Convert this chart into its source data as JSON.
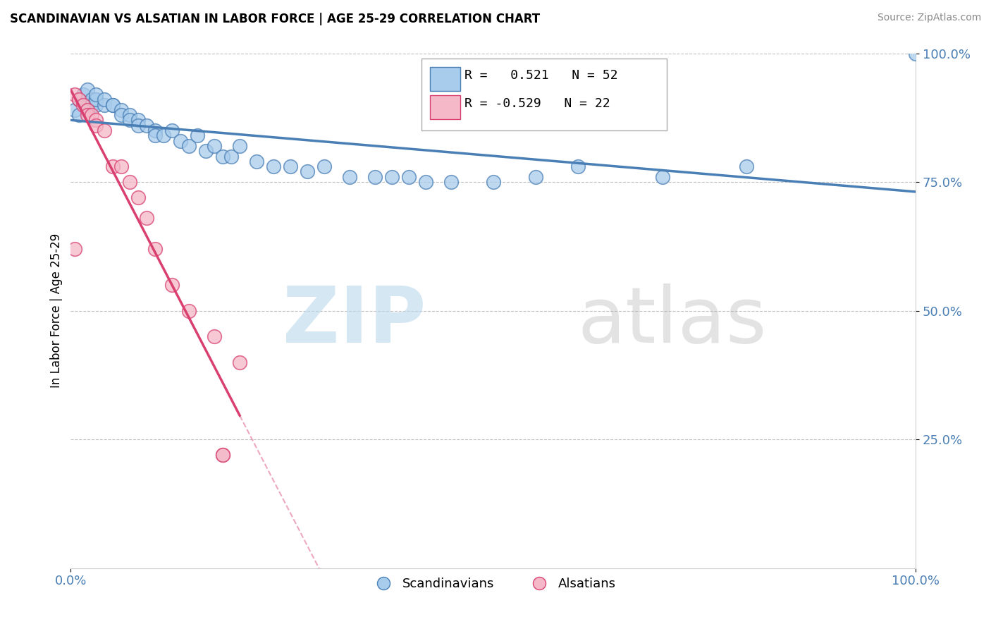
{
  "title": "SCANDINAVIAN VS ALSATIAN IN LABOR FORCE | AGE 25-29 CORRELATION CHART",
  "source_text": "Source: ZipAtlas.com",
  "ylabel": "In Labor Force | Age 25-29",
  "xlim": [
    0,
    1.0
  ],
  "ylim": [
    0,
    1.0
  ],
  "legend_r_blue": "R =   0.521",
  "legend_n_blue": "N = 52",
  "legend_r_pink": "R = -0.529",
  "legend_n_pink": "N = 22",
  "blue_color": "#a8ccec",
  "pink_color": "#f4b8c8",
  "blue_line_color": "#4a7fb5",
  "pink_line_color": "#d94070",
  "blue_scatter_x": [
    0.005,
    0.01,
    0.01,
    0.015,
    0.02,
    0.02,
    0.025,
    0.025,
    0.03,
    0.03,
    0.03,
    0.03,
    0.04,
    0.04,
    0.05,
    0.05,
    0.06,
    0.06,
    0.07,
    0.07,
    0.08,
    0.08,
    0.09,
    0.1,
    0.1,
    0.11,
    0.12,
    0.13,
    0.14,
    0.15,
    0.16,
    0.17,
    0.18,
    0.19,
    0.2,
    0.22,
    0.24,
    0.26,
    0.28,
    0.3,
    0.33,
    0.36,
    0.38,
    0.4,
    0.42,
    0.45,
    0.5,
    0.55,
    0.6,
    0.7,
    0.8,
    1.0
  ],
  "blue_scatter_y": [
    0.89,
    0.91,
    0.88,
    0.92,
    0.9,
    0.93,
    0.9,
    0.91,
    0.91,
    0.9,
    0.91,
    0.92,
    0.9,
    0.91,
    0.9,
    0.9,
    0.89,
    0.88,
    0.88,
    0.87,
    0.87,
    0.86,
    0.86,
    0.85,
    0.84,
    0.84,
    0.85,
    0.83,
    0.82,
    0.84,
    0.81,
    0.82,
    0.8,
    0.8,
    0.82,
    0.79,
    0.78,
    0.78,
    0.77,
    0.78,
    0.76,
    0.76,
    0.76,
    0.76,
    0.75,
    0.75,
    0.75,
    0.76,
    0.78,
    0.76,
    0.78,
    1.0
  ],
  "pink_scatter_x": [
    0.005,
    0.01,
    0.015,
    0.02,
    0.02,
    0.025,
    0.03,
    0.03,
    0.04,
    0.05,
    0.06,
    0.07,
    0.08,
    0.09,
    0.1,
    0.12,
    0.14,
    0.17,
    0.2,
    0.005,
    0.18,
    0.18
  ],
  "pink_scatter_y": [
    0.92,
    0.91,
    0.9,
    0.89,
    0.88,
    0.88,
    0.87,
    0.86,
    0.85,
    0.78,
    0.78,
    0.75,
    0.72,
    0.68,
    0.62,
    0.55,
    0.5,
    0.45,
    0.4,
    0.62,
    0.22,
    0.22
  ],
  "background_color": "#ffffff",
  "grid_color": "#c0c0c0"
}
